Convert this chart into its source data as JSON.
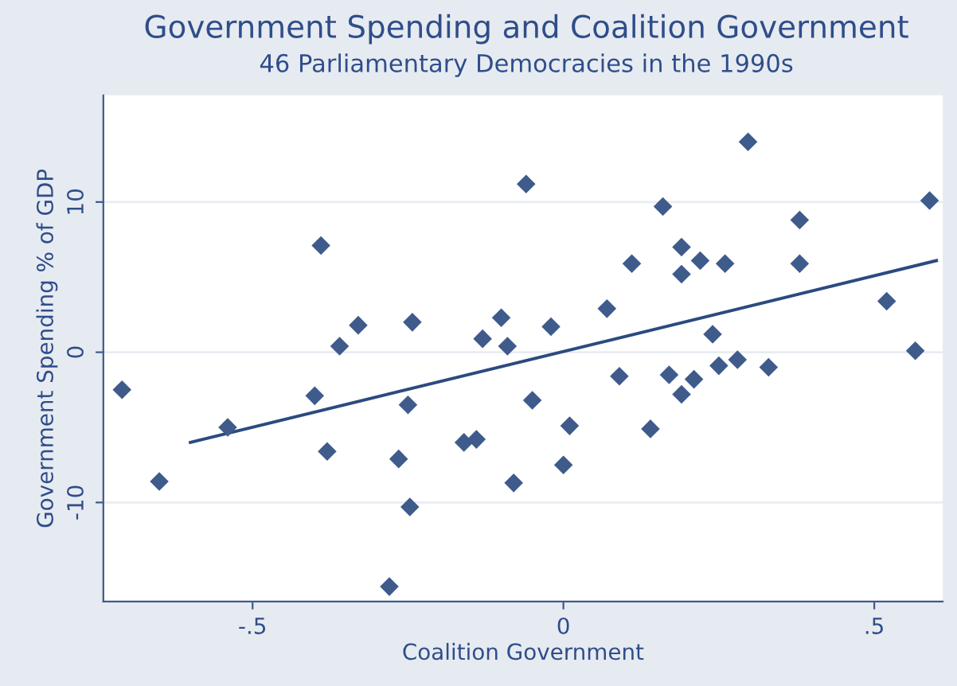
{
  "chart_data": {
    "type": "scatter",
    "title": "Government Spending and Coalition Government",
    "subtitle": "46 Parliamentary Democracies in the 1990s",
    "xlabel": "Coalition Government",
    "ylabel": "Government Spending % of GDP",
    "x": [
      -0.71,
      -0.65,
      -0.54,
      -0.4,
      -0.38,
      -0.39,
      -0.36,
      -0.33,
      -0.25,
      -0.265,
      -0.243,
      -0.247,
      -0.28,
      -0.16,
      -0.14,
      -0.13,
      -0.1,
      -0.09,
      -0.08,
      -0.06,
      -0.05,
      -0.02,
      0.0,
      0.01,
      0.07,
      0.09,
      0.11,
      0.14,
      0.16,
      0.17,
      0.19,
      0.19,
      0.19,
      0.21,
      0.22,
      0.24,
      0.25,
      0.26,
      0.28,
      0.297,
      0.33,
      0.38,
      0.38,
      0.52,
      0.566,
      0.589
    ],
    "series": [
      {
        "color": "#3f5b8c",
        "marker": "diamond",
        "values": [
          -2.5,
          -8.6,
          -5.0,
          -2.9,
          -6.6,
          7.1,
          0.4,
          1.8,
          -3.5,
          -7.1,
          2.0,
          -10.3,
          -15.6,
          -6.0,
          -5.8,
          0.9,
          2.3,
          0.4,
          -8.7,
          11.2,
          -3.2,
          1.7,
          -7.5,
          -4.9,
          2.9,
          -1.6,
          5.9,
          -5.1,
          9.7,
          -1.5,
          7.0,
          5.2,
          -2.8,
          -1.8,
          6.1,
          1.2,
          -0.9,
          5.9,
          -0.5,
          14.0,
          -1.0,
          8.8,
          5.9,
          3.4,
          0.1,
          10.1
        ]
      },
      {
        "type": "line",
        "color": "#2b4a80",
        "x": [
          -0.6,
          0.6
        ],
        "values": [
          -6.0,
          6.1
        ]
      }
    ],
    "xlim": [
      -0.74,
      0.61
    ],
    "ylim": [
      -16.6,
      17.1
    ],
    "xticks": [
      {
        "value": -0.5,
        "label": "-.5"
      },
      0,
      {
        "value": 0.5,
        "label": ".5"
      }
    ],
    "yticks": [
      -10,
      0,
      10
    ],
    "grid": "y",
    "legend": false
  }
}
